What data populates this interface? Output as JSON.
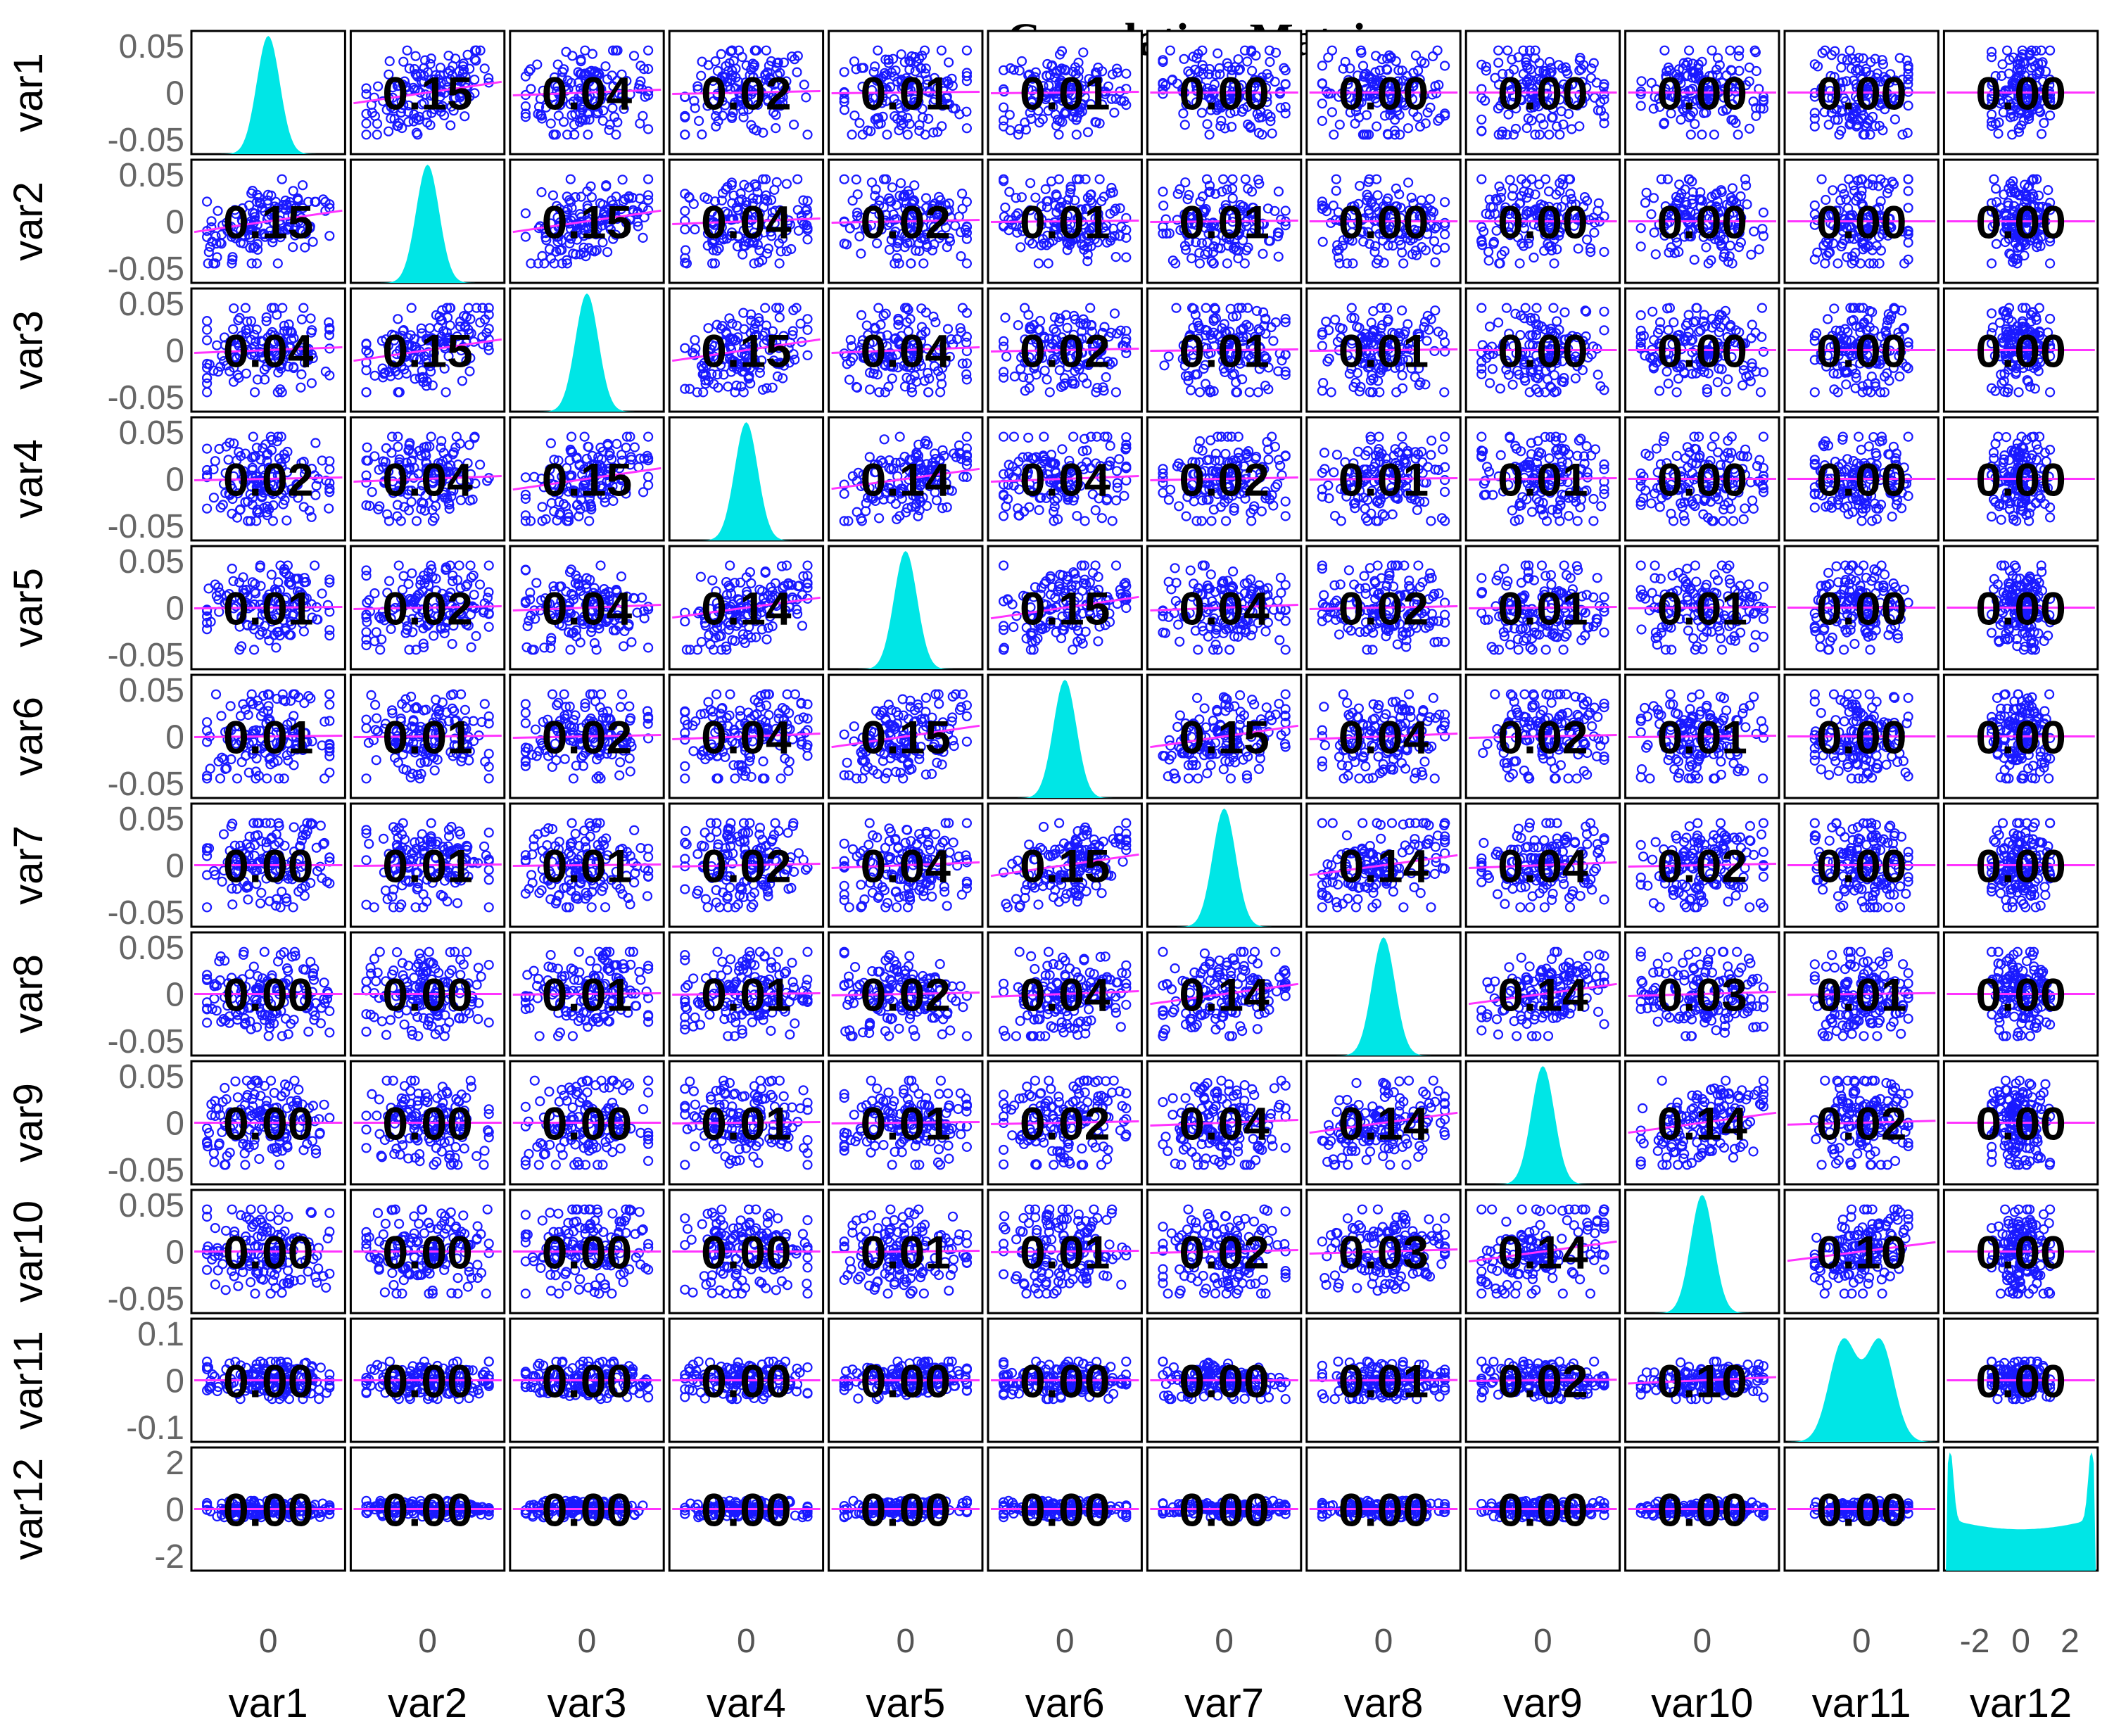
{
  "chart_data": {
    "type": "scatter-matrix",
    "title": "Correlation Matrix",
    "variables": [
      "var1",
      "var2",
      "var3",
      "var4",
      "var5",
      "var6",
      "var7",
      "var8",
      "var9",
      "var10",
      "var11",
      "var12"
    ],
    "row_tick_labels": [
      [
        "0.05",
        "0",
        "-0.05"
      ],
      [
        "0.05",
        "0",
        "-0.05"
      ],
      [
        "0.05",
        "0",
        "-0.05"
      ],
      [
        "0.05",
        "0",
        "-0.05"
      ],
      [
        "0.05",
        "0",
        "-0.05"
      ],
      [
        "0.05",
        "0",
        "-0.05"
      ],
      [
        "0.05",
        "0",
        "-0.05"
      ],
      [
        "0.05",
        "0",
        "-0.05"
      ],
      [
        "0.05",
        "0",
        "-0.05"
      ],
      [
        "0.05",
        "0",
        "-0.05"
      ],
      [
        "0.1",
        "0",
        "-0.1"
      ],
      [
        "2",
        "0",
        "-2"
      ]
    ],
    "col_tick_labels": [
      [
        "0"
      ],
      [
        "0"
      ],
      [
        "0"
      ],
      [
        "0"
      ],
      [
        "0"
      ],
      [
        "0"
      ],
      [
        "0"
      ],
      [
        "0"
      ],
      [
        "0"
      ],
      [
        "0"
      ],
      [
        "0"
      ],
      [
        "-2",
        "0",
        "2"
      ]
    ],
    "correlation_labels": [
      [
        "",
        "0.15",
        "0.04",
        "0.02",
        "0.01",
        "0.01",
        "0.00",
        "0.00",
        "0.00",
        "0.00",
        "0.00",
        "0.00"
      ],
      [
        "0.15",
        "",
        "0.15",
        "0.04",
        "0.02",
        "0.01",
        "0.01",
        "0.00",
        "0.00",
        "0.00",
        "0.00",
        "0.00"
      ],
      [
        "0.04",
        "0.15",
        "",
        "0.15",
        "0.04",
        "0.02",
        "0.01",
        "0.01",
        "0.00",
        "0.00",
        "0.00",
        "0.00"
      ],
      [
        "0.02",
        "0.04",
        "0.15",
        "",
        "0.14",
        "0.04",
        "0.02",
        "0.01",
        "0.01",
        "0.00",
        "0.00",
        "0.00"
      ],
      [
        "0.01",
        "0.02",
        "0.04",
        "0.14",
        "",
        "0.15",
        "0.04",
        "0.02",
        "0.01",
        "0.01",
        "0.00",
        "0.00"
      ],
      [
        "0.01",
        "0.01",
        "0.02",
        "0.04",
        "0.15",
        "",
        "0.15",
        "0.04",
        "0.02",
        "0.01",
        "0.00",
        "0.00"
      ],
      [
        "0.00",
        "0.01",
        "0.01",
        "0.02",
        "0.04",
        "0.15",
        "",
        "0.14",
        "0.04",
        "0.02",
        "0.00",
        "0.00"
      ],
      [
        "0.00",
        "0.00",
        "0.01",
        "0.01",
        "0.02",
        "0.04",
        "0.14",
        "",
        "0.14",
        "0.03",
        "0.01",
        "0.00"
      ],
      [
        "0.00",
        "0.00",
        "0.00",
        "0.01",
        "0.01",
        "0.02",
        "0.04",
        "0.14",
        "",
        "0.14",
        "0.02",
        "0.00"
      ],
      [
        "0.00",
        "0.00",
        "0.00",
        "0.00",
        "0.01",
        "0.01",
        "0.02",
        "0.03",
        "0.14",
        "",
        "0.10",
        "0.00"
      ],
      [
        "0.00",
        "0.00",
        "0.00",
        "0.00",
        "0.00",
        "0.00",
        "0.00",
        "0.01",
        "0.02",
        "0.10",
        "",
        "0.00"
      ],
      [
        "0.00",
        "0.00",
        "0.00",
        "0.00",
        "0.00",
        "0.00",
        "0.00",
        "0.00",
        "0.00",
        "0.00",
        "0.00",
        ""
      ]
    ],
    "diagonal_histogram": {
      "gaussian_variables": [
        "var1",
        "var2",
        "var3",
        "var4",
        "var5",
        "var6",
        "var7",
        "var8",
        "var9",
        "var10"
      ],
      "bimodal_variables": [
        "var11"
      ],
      "u_shaped_variables": [
        "var12"
      ]
    },
    "colors": {
      "scatter": "#1a1aff",
      "fit_line": "#ff33ff",
      "histogram": "#00e6e6",
      "frame": "#000000",
      "label": "#000000"
    },
    "grid": false,
    "legend": "none"
  }
}
